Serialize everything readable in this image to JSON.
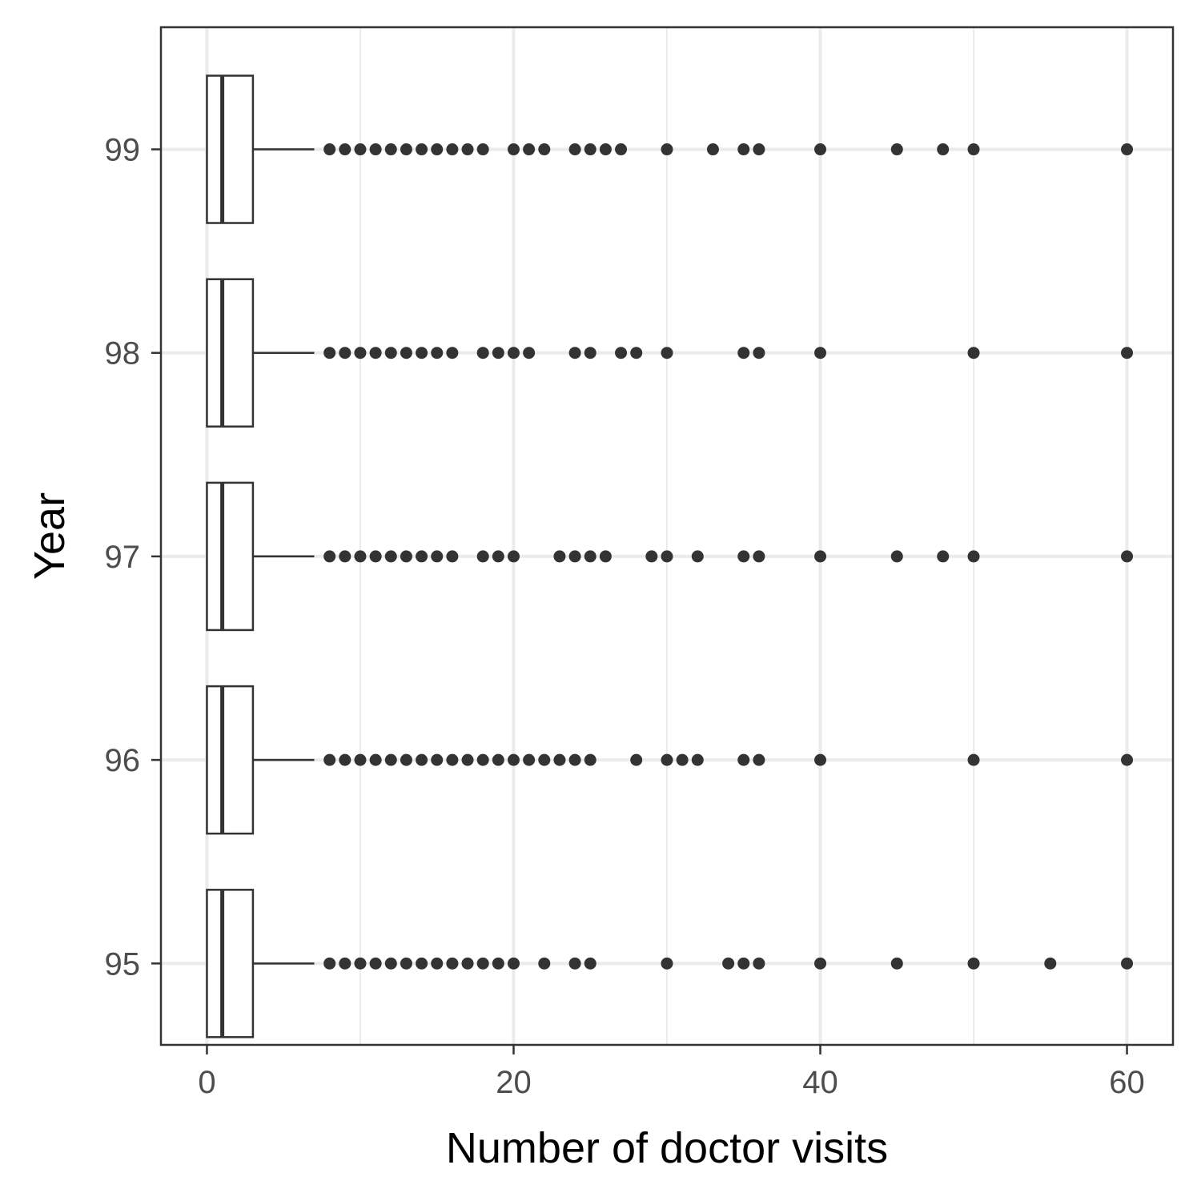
{
  "chart_data": {
    "type": "boxplot",
    "orientation": "horizontal",
    "title": "",
    "xlabel": "Number of doctor visits",
    "ylabel": "Year",
    "xlim": [
      -3,
      63
    ],
    "x_ticks": [
      0,
      20,
      40,
      60
    ],
    "grid": true,
    "colors": {
      "box_fill": "#ffffff",
      "box_stroke": "#333333",
      "outlier": "#333333",
      "grid": "#ebebeb",
      "panel_border": "#333333"
    },
    "categories": [
      "95",
      "96",
      "97",
      "98",
      "99"
    ],
    "series": [
      {
        "category": "95",
        "box": {
          "whisker_low": 0,
          "q1": 0,
          "median": 1,
          "q3": 3,
          "whisker_high": 7
        },
        "outliers": [
          8,
          9,
          10,
          11,
          12,
          13,
          14,
          15,
          16,
          17,
          18,
          19,
          20,
          22,
          24,
          25,
          30,
          34,
          35,
          36,
          40,
          45,
          50,
          55,
          60
        ]
      },
      {
        "category": "96",
        "box": {
          "whisker_low": 0,
          "q1": 0,
          "median": 1,
          "q3": 3,
          "whisker_high": 7
        },
        "outliers": [
          8,
          9,
          10,
          11,
          12,
          13,
          14,
          15,
          16,
          17,
          18,
          19,
          20,
          21,
          22,
          23,
          24,
          25,
          28,
          30,
          31,
          32,
          35,
          36,
          40,
          50,
          60
        ]
      },
      {
        "category": "97",
        "box": {
          "whisker_low": 0,
          "q1": 0,
          "median": 1,
          "q3": 3,
          "whisker_high": 7
        },
        "outliers": [
          8,
          9,
          10,
          11,
          12,
          13,
          14,
          15,
          16,
          18,
          19,
          20,
          23,
          24,
          25,
          26,
          29,
          30,
          32,
          35,
          36,
          40,
          45,
          48,
          50,
          60
        ]
      },
      {
        "category": "98",
        "box": {
          "whisker_low": 0,
          "q1": 0,
          "median": 1,
          "q3": 3,
          "whisker_high": 7
        },
        "outliers": [
          8,
          9,
          10,
          11,
          12,
          13,
          14,
          15,
          16,
          18,
          19,
          20,
          21,
          24,
          25,
          27,
          28,
          30,
          35,
          36,
          40,
          50,
          60
        ]
      },
      {
        "category": "99",
        "box": {
          "whisker_low": 0,
          "q1": 0,
          "median": 1,
          "q3": 3,
          "whisker_high": 7
        },
        "outliers": [
          8,
          9,
          10,
          11,
          12,
          13,
          14,
          15,
          16,
          17,
          18,
          20,
          21,
          22,
          24,
          25,
          26,
          27,
          30,
          33,
          35,
          36,
          40,
          45,
          48,
          50,
          60
        ]
      }
    ]
  }
}
